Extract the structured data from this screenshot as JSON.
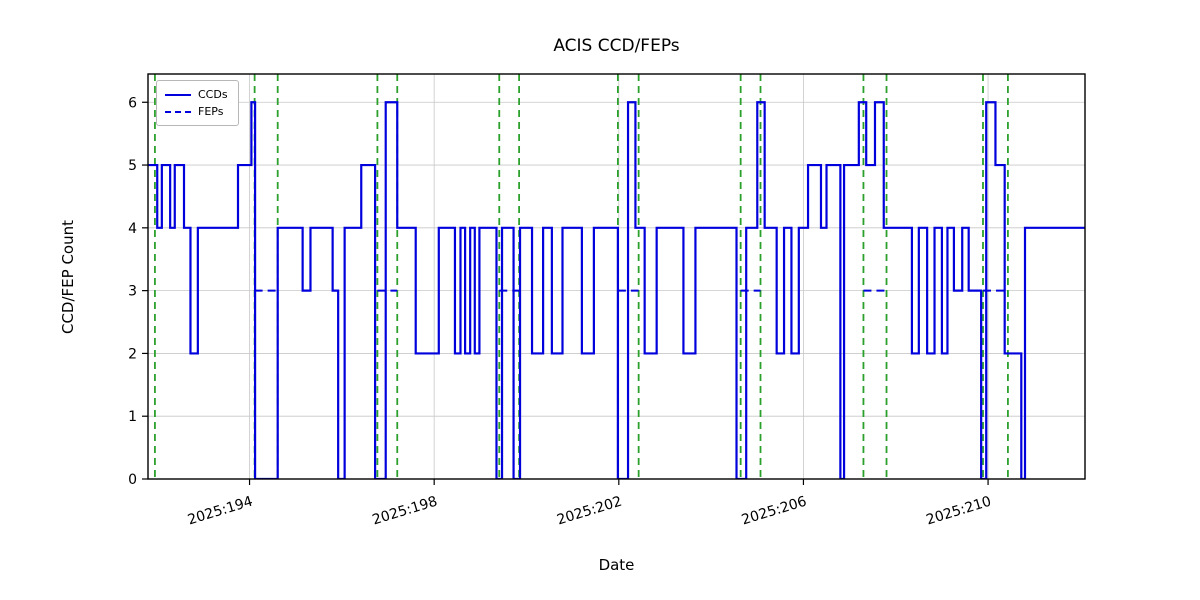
{
  "chart_data": {
    "type": "line",
    "title": "ACIS CCD/FEPs",
    "xlabel": "Date",
    "ylabel": "CCD/FEP Count",
    "xlim": [
      191.8,
      212.1
    ],
    "ylim": [
      0,
      6.45
    ],
    "grid": true,
    "legend_position": "upper left",
    "yticks": [
      0,
      1,
      2,
      3,
      4,
      5,
      6
    ],
    "xticks": [
      {
        "value": 194,
        "label": "2025:194"
      },
      {
        "value": 198,
        "label": "2025:198"
      },
      {
        "value": 202,
        "label": "2025:202"
      },
      {
        "value": 206,
        "label": "2025:206"
      },
      {
        "value": 210,
        "label": "2025:210"
      }
    ],
    "colors": {
      "ccd_line": "#0000dd",
      "fep_line": "#0000dd",
      "event_line": "#2ca02c",
      "grid": "#c8c8c8",
      "frame": "#000000"
    },
    "series": [
      {
        "name": "CCDs",
        "style": "solid",
        "step_points": [
          [
            191.8,
            5
          ],
          [
            192.0,
            4
          ],
          [
            192.1,
            5
          ],
          [
            192.28,
            4
          ],
          [
            192.38,
            5
          ],
          [
            192.58,
            4
          ],
          [
            192.72,
            2
          ],
          [
            192.88,
            4
          ],
          [
            193.75,
            5
          ],
          [
            194.04,
            6
          ],
          [
            194.12,
            0
          ],
          [
            194.61,
            4
          ],
          [
            195.15,
            3
          ],
          [
            195.32,
            4
          ],
          [
            195.8,
            3
          ],
          [
            195.92,
            0
          ],
          [
            196.06,
            4
          ],
          [
            196.42,
            5
          ],
          [
            196.72,
            0
          ],
          [
            196.95,
            6
          ],
          [
            197.2,
            4
          ],
          [
            197.6,
            2
          ],
          [
            198.1,
            4
          ],
          [
            198.45,
            2
          ],
          [
            198.57,
            4
          ],
          [
            198.67,
            2
          ],
          [
            198.78,
            4
          ],
          [
            198.88,
            2
          ],
          [
            198.98,
            4
          ],
          [
            199.35,
            0
          ],
          [
            199.47,
            4
          ],
          [
            199.72,
            0
          ],
          [
            199.86,
            4
          ],
          [
            200.12,
            2
          ],
          [
            200.36,
            4
          ],
          [
            200.55,
            2
          ],
          [
            200.78,
            4
          ],
          [
            201.2,
            2
          ],
          [
            201.46,
            4
          ],
          [
            201.98,
            0
          ],
          [
            202.2,
            6
          ],
          [
            202.36,
            4
          ],
          [
            202.56,
            2
          ],
          [
            202.82,
            4
          ],
          [
            203.4,
            2
          ],
          [
            203.66,
            4
          ],
          [
            204.55,
            0
          ],
          [
            204.76,
            4
          ],
          [
            205.0,
            6
          ],
          [
            205.16,
            4
          ],
          [
            205.42,
            2
          ],
          [
            205.58,
            4
          ],
          [
            205.74,
            2
          ],
          [
            205.9,
            4
          ],
          [
            206.1,
            5
          ],
          [
            206.38,
            4
          ],
          [
            206.5,
            5
          ],
          [
            206.8,
            0
          ],
          [
            206.88,
            5
          ],
          [
            207.2,
            6
          ],
          [
            207.36,
            5
          ],
          [
            207.55,
            6
          ],
          [
            207.74,
            4
          ],
          [
            208.35,
            2
          ],
          [
            208.5,
            4
          ],
          [
            208.68,
            2
          ],
          [
            208.84,
            4
          ],
          [
            209.0,
            2
          ],
          [
            209.12,
            4
          ],
          [
            209.26,
            3
          ],
          [
            209.44,
            4
          ],
          [
            209.58,
            3
          ],
          [
            209.85,
            0
          ],
          [
            209.96,
            6
          ],
          [
            210.16,
            5
          ],
          [
            210.36,
            2
          ],
          [
            210.72,
            0
          ],
          [
            210.8,
            4
          ],
          [
            212.1,
            4
          ]
        ]
      },
      {
        "name": "FEPs",
        "style": "dashed",
        "segments": [
          {
            "x0": 194.11,
            "x1": 194.61,
            "y": 3
          },
          {
            "x0": 196.77,
            "x1": 197.2,
            "y": 3
          },
          {
            "x0": 199.41,
            "x1": 199.84,
            "y": 3
          },
          {
            "x0": 201.98,
            "x1": 202.43,
            "y": 3
          },
          {
            "x0": 204.64,
            "x1": 205.07,
            "y": 3
          },
          {
            "x0": 207.3,
            "x1": 207.8,
            "y": 3
          },
          {
            "x0": 209.89,
            "x1": 210.43,
            "y": 3
          }
        ]
      }
    ],
    "event_lines": {
      "style": "dashed",
      "x": [
        191.95,
        194.11,
        194.61,
        196.77,
        197.2,
        199.41,
        199.84,
        201.98,
        202.43,
        204.64,
        205.07,
        207.3,
        207.8,
        209.89,
        210.43
      ]
    }
  }
}
